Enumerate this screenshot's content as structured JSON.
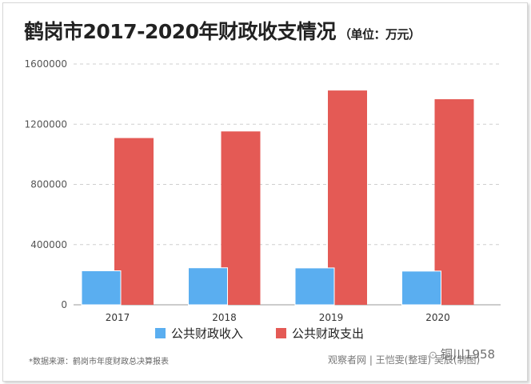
{
  "chart_data": {
    "type": "bar",
    "title": "鹤岗市2017-2020年财政收支情况",
    "unit": "（单位：万元）",
    "categories": [
      "2017",
      "2018",
      "2019",
      "2020"
    ],
    "series": [
      {
        "name": "公共财政收入",
        "color": "#5aaef0",
        "values": [
          226000,
          246000,
          245000,
          224000
        ]
      },
      {
        "name": "公共财政支出",
        "color": "#e45a55",
        "values": [
          1108000,
          1152000,
          1424000,
          1366000
        ]
      }
    ],
    "yticks": [
      "0",
      "400000",
      "800000",
      "1200000",
      "1600000"
    ],
    "ylim": [
      0,
      1600000
    ],
    "grid": true,
    "legend": "bottom"
  },
  "footer": {
    "source": "*数据来源：鹤岗市年度财政总决算报表",
    "credit": "观察者网 | 王恺雯(整理) 吴辰(制图)",
    "watermark": "铜川1958"
  }
}
